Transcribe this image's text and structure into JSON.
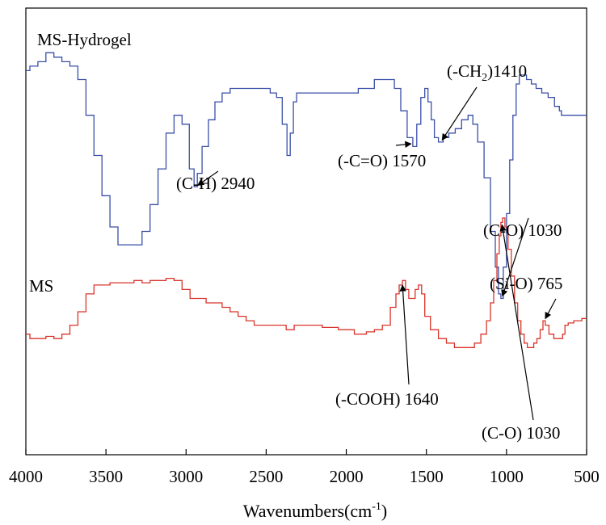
{
  "chart_data": {
    "type": "line",
    "title": "",
    "xlabel": "Wavenumbers(cm",
    "xlabel_superscript": "-1",
    "xlabel_close": ")",
    "xlim": [
      4000,
      500
    ],
    "x_reversed": true,
    "x_ticks": [
      "4000",
      "3500",
      "3000",
      "2500",
      "2000",
      "1500",
      "1000",
      "500"
    ],
    "y_ticks": [],
    "grid": false,
    "series": [
      {
        "name": "MS-Hydrogel",
        "color": "#3a4fa8",
        "x": [
          4000,
          3950,
          3900,
          3850,
          3800,
          3750,
          3700,
          3650,
          3600,
          3550,
          3500,
          3450,
          3400,
          3350,
          3300,
          3250,
          3200,
          3150,
          3100,
          3050,
          3000,
          2960,
          2940,
          2920,
          2880,
          2840,
          2800,
          2750,
          2700,
          2650,
          2600,
          2550,
          2500,
          2450,
          2420,
          2380,
          2360,
          2340,
          2320,
          2300,
          2250,
          2200,
          2150,
          2100,
          2050,
          2000,
          1950,
          1900,
          1850,
          1800,
          1760,
          1720,
          1680,
          1640,
          1600,
          1570,
          1550,
          1520,
          1500,
          1480,
          1460,
          1440,
          1410,
          1380,
          1340,
          1300,
          1260,
          1220,
          1200,
          1160,
          1120,
          1080,
          1060,
          1040,
          1030,
          1010,
          990,
          970,
          950,
          930,
          910,
          890,
          860,
          830,
          800,
          760,
          720,
          680,
          660,
          655,
          640,
          600,
          560,
          500
        ],
        "y": [
          86,
          87,
          88,
          90,
          89,
          88,
          87,
          84,
          76,
          67,
          58,
          51,
          47,
          47,
          47,
          50,
          56,
          64,
          72,
          76,
          74,
          64,
          60,
          63,
          69,
          75,
          79,
          81,
          82,
          82,
          82,
          82,
          82,
          81,
          80,
          74,
          67,
          72,
          79,
          81,
          81,
          81,
          81,
          81,
          81,
          81,
          81,
          82,
          82,
          84,
          84,
          84,
          82,
          77,
          71,
          69,
          74,
          80,
          82,
          79,
          75,
          71,
          70,
          71,
          72,
          73,
          75,
          76,
          74,
          70,
          62,
          50,
          42,
          36,
          35,
          42,
          54,
          66,
          76,
          83,
          85,
          85,
          84,
          83,
          82,
          81,
          80,
          78,
          77,
          76,
          76,
          76,
          76,
          76
        ]
      },
      {
        "name": "MS",
        "color": "#d9342b",
        "x": [
          4000,
          3950,
          3900,
          3850,
          3800,
          3750,
          3700,
          3650,
          3600,
          3550,
          3500,
          3450,
          3400,
          3350,
          3300,
          3250,
          3200,
          3150,
          3100,
          3050,
          3000,
          2950,
          2900,
          2850,
          2800,
          2750,
          2700,
          2650,
          2600,
          2550,
          2500,
          2450,
          2400,
          2350,
          2300,
          2250,
          2200,
          2100,
          2000,
          1900,
          1850,
          1800,
          1750,
          1700,
          1680,
          1660,
          1640,
          1620,
          1600,
          1580,
          1560,
          1540,
          1520,
          1500,
          1450,
          1400,
          1350,
          1300,
          1260,
          1220,
          1180,
          1140,
          1110,
          1090,
          1070,
          1050,
          1040,
          1030,
          1020,
          1000,
          980,
          960,
          940,
          920,
          900,
          880,
          860,
          840,
          820,
          800,
          780,
          765,
          750,
          720,
          690,
          660,
          640,
          630,
          600,
          560,
          500
        ],
        "y": [
          27,
          26,
          26,
          26.5,
          26,
          27,
          29,
          32,
          36,
          38,
          38,
          38.5,
          38.5,
          38.5,
          39,
          38.5,
          39,
          39,
          39.5,
          39,
          37,
          35,
          35,
          34,
          34,
          33,
          32,
          31,
          30,
          29,
          29,
          29,
          29,
          28,
          29,
          29,
          29,
          28.5,
          28,
          27,
          27.5,
          28,
          29,
          33,
          36,
          38,
          39,
          37,
          35,
          35,
          37,
          38,
          36,
          31,
          28,
          26,
          25,
          24,
          24,
          24,
          25,
          27,
          30,
          34,
          39,
          45,
          49,
          52,
          53,
          51,
          46,
          40,
          34,
          30,
          27,
          25,
          24,
          24,
          25,
          26,
          28,
          30,
          29,
          27,
          26,
          26,
          27,
          29,
          29.5,
          30,
          30.5
        ]
      }
    ],
    "series_labels": [
      "MS-Hydrogel",
      "MS"
    ],
    "annotations": [
      {
        "text": "(C-H) 2940",
        "series": "MS-Hydrogel",
        "x": 2940
      },
      {
        "text": "(-C=O) 1570",
        "series": "MS-Hydrogel",
        "x": 1580
      },
      {
        "text": "(-CH",
        "subscript": "2",
        "text_after": ")1410",
        "series": "MS-Hydrogel",
        "x": 1410
      },
      {
        "text": "(C-O) 1030",
        "series": "MS-Hydrogel",
        "x": 1030
      },
      {
        "text": "(Si-O) 765",
        "series": "MS",
        "x": 765
      },
      {
        "text": "(-COOH) 1640",
        "series": "MS",
        "x": 1650
      },
      {
        "text": "(C-O) 1030",
        "series": "MS",
        "x": 1030
      }
    ]
  }
}
